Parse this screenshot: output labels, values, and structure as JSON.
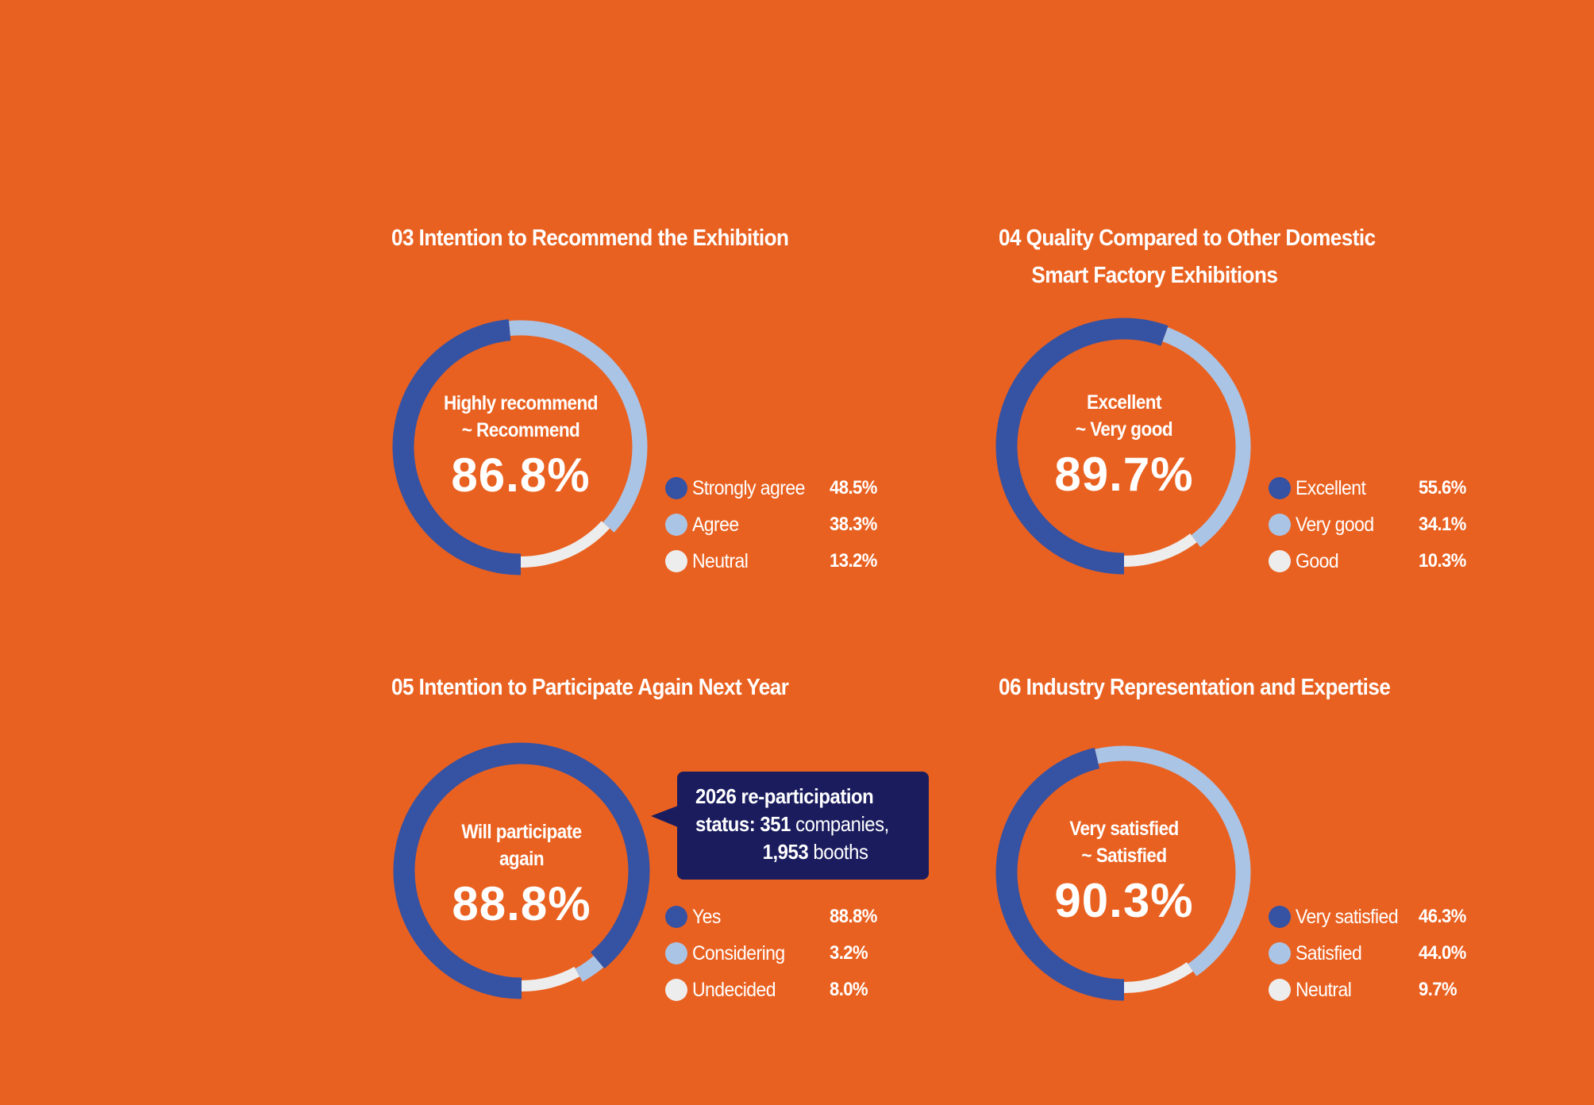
{
  "colors": {
    "background": "#E96120",
    "primary": "#3652A3",
    "secondary": "#AAC4E6",
    "tertiary": "#EDEDED",
    "callout": "#1A1C5E",
    "text": "#FFFFFF"
  },
  "chart_data": [
    {
      "type": "pie",
      "variant": "donut",
      "id": "03",
      "title": "03 Intention to Recommend the Exhibition",
      "center_label": [
        "Highly recommend",
        "~ Recommend"
      ],
      "center_value": "86.8%",
      "categories": [
        "Strongly agree",
        "Agree",
        "Neutral"
      ],
      "values": [
        48.5,
        38.3,
        13.2
      ],
      "value_labels": [
        "48.5%",
        "38.3%",
        "13.2%"
      ],
      "colors": [
        "#3652A3",
        "#AAC4E6",
        "#EDEDED"
      ],
      "start": "bottom",
      "direction": "clockwise",
      "legend": "right-bottom"
    },
    {
      "type": "pie",
      "variant": "donut",
      "id": "04",
      "title": "04 Quality Compared to Other Domestic Smart Factory Exhibitions",
      "title_lines": [
        "04 Quality Compared to Other Domestic",
        "Smart Factory Exhibitions"
      ],
      "center_label": [
        "Excellent",
        "~ Very good"
      ],
      "center_value": "89.7%",
      "categories": [
        "Excellent",
        "Very good",
        "Good"
      ],
      "values": [
        55.6,
        34.1,
        10.3
      ],
      "value_labels": [
        "55.6%",
        "34.1%",
        "10.3%"
      ],
      "colors": [
        "#3652A3",
        "#AAC4E6",
        "#EDEDED"
      ],
      "start": "bottom",
      "direction": "clockwise",
      "legend": "right-bottom"
    },
    {
      "type": "pie",
      "variant": "donut",
      "id": "05",
      "title": "05 Intention to Participate Again Next Year",
      "center_label": [
        "Will participate",
        "again"
      ],
      "center_value": "88.8%",
      "categories": [
        "Yes",
        "Considering",
        "Undecided"
      ],
      "values": [
        88.8,
        3.2,
        8.0
      ],
      "value_labels": [
        "88.8%",
        "3.2%",
        "8.0%"
      ],
      "colors": [
        "#3652A3",
        "#AAC4E6",
        "#EDEDED"
      ],
      "start": "bottom",
      "direction": "clockwise",
      "legend": "right-bottom",
      "annotation": "2026 re-participation status: 351 companies, 1,953 booths"
    },
    {
      "type": "pie",
      "variant": "donut",
      "id": "06",
      "title": "06 Industry Representation and Expertise",
      "center_label": [
        "Very satisfied",
        "~ Satisfied"
      ],
      "center_value": "90.3%",
      "categories": [
        "Very satisfied",
        "Satisfied",
        "Neutral"
      ],
      "values": [
        46.3,
        44.0,
        9.7
      ],
      "value_labels": [
        "46.3%",
        "44.0%",
        "9.7%"
      ],
      "colors": [
        "#3652A3",
        "#AAC4E6",
        "#EDEDED"
      ],
      "start": "bottom",
      "direction": "clockwise",
      "legend": "right-bottom"
    }
  ],
  "callout": {
    "line1_bold": "2026 re-participation",
    "line2_bold": "status: 351",
    "line2_regular": " companies,",
    "line3_bold": "1,953",
    "line3_regular": " booths"
  }
}
